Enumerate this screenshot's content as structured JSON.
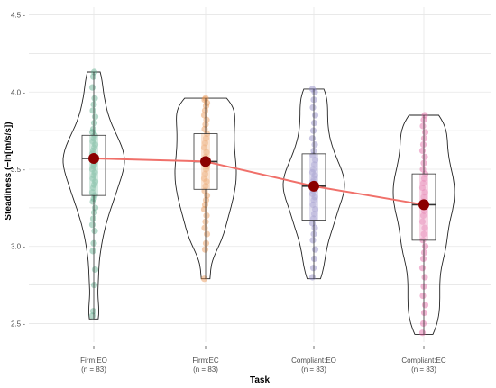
{
  "chart_data": {
    "type": "violin",
    "xlabel": "Task",
    "ylabel": "Steadiness (−ln[m/s/s])",
    "ylim": [
      2.38,
      4.55
    ],
    "yticks": [
      2.5,
      3.0,
      3.5,
      4.0,
      4.5
    ],
    "ytick_labels": [
      "2.5 -",
      "3.0 -",
      "3.5 -",
      "4.0 -",
      "4.5 -"
    ],
    "grid": true,
    "categories": [
      {
        "name": "Firm:EO",
        "n_label": "(n = 83)",
        "color": "#5aab8a",
        "min": 2.53,
        "q1": 3.33,
        "median": 3.57,
        "q3": 3.72,
        "max": 4.13,
        "mean": 3.57,
        "points": [
          2.55,
          2.58,
          2.75,
          2.85,
          2.97,
          3.02,
          3.1,
          3.14,
          3.18,
          3.22,
          3.25,
          3.29,
          3.31,
          3.33,
          3.35,
          3.38,
          3.4,
          3.42,
          3.44,
          3.46,
          3.48,
          3.5,
          3.52,
          3.53,
          3.55,
          3.56,
          3.57,
          3.58,
          3.6,
          3.62,
          3.64,
          3.66,
          3.68,
          3.7,
          3.72,
          3.74,
          3.76,
          3.8,
          3.84,
          3.88,
          3.92,
          3.96,
          4.03,
          4.1,
          4.13
        ]
      },
      {
        "name": "Firm:EC",
        "n_label": "(n = 83)",
        "color": "#e8934e",
        "min": 2.79,
        "q1": 3.37,
        "median": 3.55,
        "q3": 3.73,
        "max": 3.96,
        "mean": 3.55,
        "points": [
          2.79,
          2.98,
          3.02,
          3.08,
          3.12,
          3.16,
          3.2,
          3.24,
          3.27,
          3.3,
          3.33,
          3.36,
          3.39,
          3.42,
          3.44,
          3.47,
          3.5,
          3.52,
          3.55,
          3.58,
          3.61,
          3.64,
          3.67,
          3.7,
          3.73,
          3.76,
          3.79,
          3.82,
          3.85,
          3.88,
          3.91,
          3.93,
          3.95,
          3.96
        ]
      },
      {
        "name": "Compliant:EO",
        "n_label": "(n = 83)",
        "color": "#8a82c2",
        "min": 2.79,
        "q1": 3.17,
        "median": 3.39,
        "q3": 3.6,
        "max": 4.02,
        "mean": 3.39,
        "points": [
          2.8,
          2.86,
          2.92,
          2.98,
          3.04,
          3.08,
          3.12,
          3.15,
          3.18,
          3.21,
          3.24,
          3.27,
          3.3,
          3.32,
          3.34,
          3.36,
          3.38,
          3.4,
          3.42,
          3.44,
          3.46,
          3.48,
          3.5,
          3.53,
          3.56,
          3.59,
          3.62,
          3.66,
          3.7,
          3.75,
          3.8,
          3.85,
          3.9,
          3.95,
          4.0,
          4.02
        ]
      },
      {
        "name": "Compliant:EC",
        "n_label": "(n = 83)",
        "color": "#e0609f",
        "min": 2.43,
        "q1": 3.04,
        "median": 3.27,
        "q3": 3.47,
        "max": 3.85,
        "mean": 3.27,
        "points": [
          2.44,
          2.5,
          2.57,
          2.62,
          2.68,
          2.74,
          2.8,
          2.86,
          2.92,
          2.96,
          3.0,
          3.04,
          3.08,
          3.12,
          3.16,
          3.2,
          3.23,
          3.26,
          3.29,
          3.32,
          3.35,
          3.38,
          3.41,
          3.44,
          3.47,
          3.5,
          3.54,
          3.58,
          3.62,
          3.66,
          3.7,
          3.74,
          3.78,
          3.82,
          3.85
        ]
      }
    ]
  }
}
